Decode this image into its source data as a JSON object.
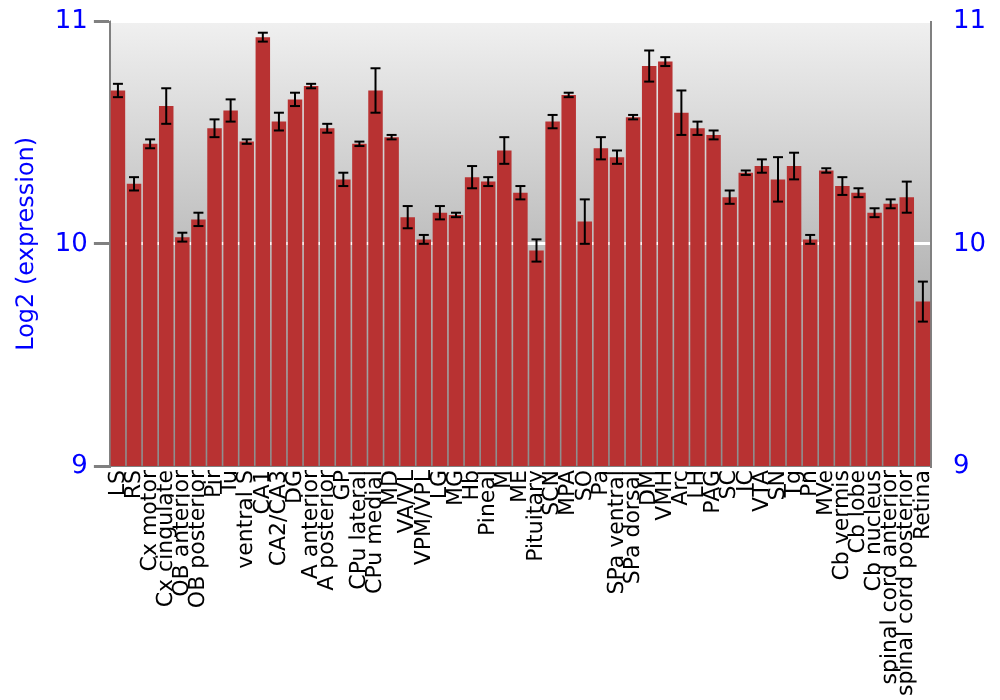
{
  "chart_data": {
    "type": "bar",
    "ylabel": "Log2 (expression)",
    "categories": [
      "LS",
      "RS",
      "Cx motor",
      "Cx cingulate",
      "OB anterior",
      "OB posterior",
      "Pir",
      "Tu",
      "ventral S",
      "CA1",
      "CA2/CA3",
      "DG",
      "A anterior",
      "A posterior",
      "GP",
      "CPu lateral",
      "CPu medial",
      "MD",
      "VA/VL",
      "VPM/VPL",
      "LG",
      "MG",
      "Hb",
      "Pineal",
      "M",
      "ME",
      "Pituitary",
      "SCN",
      "MPA",
      "SO",
      "Pa",
      "SPa ventral",
      "SPa dorsal",
      "DM",
      "VMH",
      "Arc",
      "LH",
      "PAG",
      "SC",
      "IC",
      "VTA",
      "SN",
      "Tg",
      "Pn",
      "MVe",
      "Cb vermis",
      "Cb lobe",
      "Cb nucleus",
      "spinal cord anterior",
      "spinal cord posterior",
      "Retina"
    ],
    "values": [
      10.69,
      10.27,
      10.45,
      10.62,
      10.03,
      10.11,
      10.52,
      10.6,
      10.46,
      10.93,
      10.55,
      10.65,
      10.71,
      10.52,
      10.29,
      10.45,
      10.69,
      10.48,
      10.12,
      10.02,
      10.14,
      10.13,
      10.3,
      10.28,
      10.42,
      10.23,
      9.97,
      10.55,
      10.67,
      10.1,
      10.43,
      10.39,
      10.57,
      10.8,
      10.82,
      10.59,
      10.52,
      10.49,
      10.21,
      10.32,
      10.35,
      10.29,
      10.35,
      10.02,
      10.33,
      10.26,
      10.23,
      10.14,
      10.18,
      10.21,
      9.74
    ],
    "errors": [
      0.03,
      0.03,
      0.02,
      0.08,
      0.02,
      0.03,
      0.04,
      0.05,
      0.01,
      0.02,
      0.04,
      0.03,
      0.01,
      0.02,
      0.03,
      0.01,
      0.1,
      0.01,
      0.05,
      0.02,
      0.03,
      0.01,
      0.05,
      0.02,
      0.06,
      0.03,
      0.05,
      0.03,
      0.01,
      0.1,
      0.05,
      0.03,
      0.01,
      0.07,
      0.02,
      0.1,
      0.03,
      0.02,
      0.03,
      0.01,
      0.03,
      0.1,
      0.06,
      0.02,
      0.01,
      0.04,
      0.02,
      0.02,
      0.02,
      0.07,
      0.09
    ],
    "color": "#b83232",
    "ylim": [
      9,
      11
    ],
    "yticks": [
      9,
      10,
      11
    ],
    "y2lim": [
      9,
      11
    ],
    "y2ticks": [
      9,
      10,
      11
    ],
    "grid": "y"
  }
}
